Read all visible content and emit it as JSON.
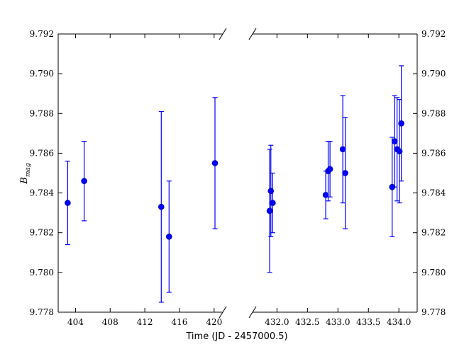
{
  "chart_data": {
    "type": "scatter",
    "xlabel": "Time (JD - 2457000.5)",
    "ylabel_main": "B",
    "ylabel_sub": "mag",
    "ylim": [
      9.778,
      9.792
    ],
    "yticks": [
      "9.778",
      "9.780",
      "9.782",
      "9.784",
      "9.786",
      "9.788",
      "9.790",
      "9.792"
    ],
    "color": "#0000ff",
    "grid": false,
    "panels": [
      {
        "name": "left",
        "xlim": [
          402,
          421
        ],
        "xticks": [
          "404",
          "408",
          "412",
          "416",
          "420"
        ],
        "points": [
          {
            "x": 403.1,
            "y": 9.7835,
            "err": 0.0021
          },
          {
            "x": 405.0,
            "y": 9.7846,
            "err": 0.002
          },
          {
            "x": 413.9,
            "y": 9.7833,
            "err": 0.0048
          },
          {
            "x": 414.8,
            "y": 9.7818,
            "err": 0.0028
          },
          {
            "x": 420.1,
            "y": 9.7855,
            "err": 0.0033
          }
        ]
      },
      {
        "name": "right",
        "xlim": [
          431.6,
          434.3
        ],
        "xticks": [
          "432.0",
          "432.5",
          "433.0",
          "433.5",
          "434.0"
        ],
        "points": [
          {
            "x": 431.88,
            "y": 9.7831,
            "err": 0.0031
          },
          {
            "x": 431.9,
            "y": 9.7841,
            "err": 0.0023
          },
          {
            "x": 431.93,
            "y": 9.7835,
            "err": 0.0015
          },
          {
            "x": 432.8,
            "y": 9.7839,
            "err": 0.0012
          },
          {
            "x": 432.84,
            "y": 9.7851,
            "err": 0.0015
          },
          {
            "x": 432.87,
            "y": 9.7852,
            "err": 0.0014
          },
          {
            "x": 433.08,
            "y": 9.7862,
            "err": 0.0027
          },
          {
            "x": 433.12,
            "y": 9.785,
            "err": 0.0028
          },
          {
            "x": 433.89,
            "y": 9.7843,
            "err": 0.0025
          },
          {
            "x": 433.93,
            "y": 9.7866,
            "err": 0.0023
          },
          {
            "x": 433.97,
            "y": 9.7862,
            "err": 0.0026
          },
          {
            "x": 434.01,
            "y": 9.7861,
            "err": 0.0026
          },
          {
            "x": 434.04,
            "y": 9.7875,
            "err": 0.0029
          }
        ]
      }
    ]
  }
}
